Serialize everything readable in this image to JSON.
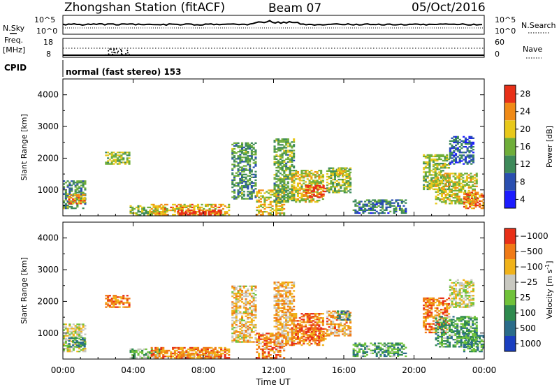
{
  "header": {
    "title": "Zhongshan Station (fitACF)",
    "beam": "Beam 07",
    "date": "05/Oct/2016"
  },
  "summary_panels": {
    "nsky_label": "N.Sky",
    "nsearch_label": "N.Search",
    "noise_tick_top": "10^5",
    "noise_tick_bottom": "10^0",
    "freq_label": "Freq.",
    "freq_unit": "[MHz]",
    "freq_tick_top": "18",
    "freq_tick_bottom": "8",
    "nave_label": "Nave",
    "nave_tick_top": "60",
    "nave_tick_bottom": "0",
    "cpid_label": "CPID",
    "cpid_value": "normal (fast stereo) 153"
  },
  "chart_data": [
    {
      "type": "heatmap",
      "name": "power",
      "ylabel": "Slant Range [km]",
      "xlabel": "",
      "xlim": [
        0,
        24
      ],
      "ylim": [
        180,
        4500
      ],
      "yticks": [
        1000,
        2000,
        3000,
        4000
      ],
      "xtick_labels": [
        "00:00",
        "04:00",
        "08:00",
        "12:00",
        "16:00",
        "20:00",
        "00:00"
      ],
      "colorbar": {
        "label": "Power [dB]",
        "ticks": [
          "4",
          "8",
          "12",
          "16",
          "20",
          "24",
          "28"
        ],
        "colors": [
          "#1c1cff",
          "#2a4fb0",
          "#3e8a5a",
          "#6fae3a",
          "#e8c81a",
          "#f08a16",
          "#e83018"
        ]
      },
      "regions": [
        {
          "t": [
            0.0,
            1.3
          ],
          "r": [
            400,
            1300
          ],
          "level": 0.4
        },
        {
          "t": [
            0.3,
            1.2
          ],
          "r": [
            550,
            850
          ],
          "level": 0.75
        },
        {
          "t": [
            2.4,
            3.8
          ],
          "r": [
            1800,
            2200
          ],
          "level": 0.55
        },
        {
          "t": [
            3.8,
            5.5
          ],
          "r": [
            200,
            500
          ],
          "level": 0.5
        },
        {
          "t": [
            5.0,
            9.5
          ],
          "r": [
            200,
            550
          ],
          "level": 0.7
        },
        {
          "t": [
            6.5,
            9.0
          ],
          "r": [
            200,
            350
          ],
          "level": 0.95
        },
        {
          "t": [
            9.6,
            11.0
          ],
          "r": [
            700,
            2500
          ],
          "level": 0.4
        },
        {
          "t": [
            11.0,
            12.6
          ],
          "r": [
            200,
            1000
          ],
          "level": 0.65
        },
        {
          "t": [
            12.0,
            13.2
          ],
          "r": [
            600,
            2600
          ],
          "level": 0.45
        },
        {
          "t": [
            13.0,
            14.8
          ],
          "r": [
            600,
            1600
          ],
          "level": 0.6
        },
        {
          "t": [
            13.8,
            15.0
          ],
          "r": [
            750,
            1150
          ],
          "level": 0.92
        },
        {
          "t": [
            15.0,
            16.4
          ],
          "r": [
            900,
            1700
          ],
          "level": 0.5
        },
        {
          "t": [
            15.6,
            16.3
          ],
          "r": [
            1400,
            1700
          ],
          "level": 0.6
        },
        {
          "t": [
            16.5,
            19.5
          ],
          "r": [
            250,
            700
          ],
          "level": 0.3
        },
        {
          "t": [
            20.5,
            22.0
          ],
          "r": [
            1000,
            2100
          ],
          "level": 0.55
        },
        {
          "t": [
            21.2,
            23.6
          ],
          "r": [
            550,
            1500
          ],
          "level": 0.6
        },
        {
          "t": [
            22.8,
            24.0
          ],
          "r": [
            400,
            900
          ],
          "level": 0.8
        },
        {
          "t": [
            22.0,
            23.4
          ],
          "r": [
            1800,
            2700
          ],
          "level": 0.25
        }
      ]
    },
    {
      "type": "heatmap",
      "name": "velocity",
      "ylabel": "Slant Range [km]",
      "xlabel": "Time UT",
      "xlim": [
        0,
        24
      ],
      "ylim": [
        180,
        4500
      ],
      "yticks": [
        1000,
        2000,
        3000,
        4000
      ],
      "xtick_labels": [
        "00:00",
        "04:00",
        "08:00",
        "12:00",
        "16:00",
        "20:00",
        "00:00"
      ],
      "colorbar": {
        "label": "Velocity [m s^-1]",
        "ticks": [
          "1000",
          "500",
          "100",
          "25",
          "−25",
          "−100",
          "−500",
          "−1000"
        ],
        "colors": [
          "#1a3fc0",
          "#2a6c8a",
          "#2e8a4e",
          "#70c23a",
          "#c8c8c0",
          "#f0b21a",
          "#f07a16",
          "#e83018"
        ]
      },
      "regions": [
        {
          "t": [
            0.0,
            1.3
          ],
          "r": [
            400,
            1300
          ],
          "level": 0.55
        },
        {
          "t": [
            0.3,
            1.2
          ],
          "r": [
            550,
            850
          ],
          "level": 0.3
        },
        {
          "t": [
            2.4,
            3.8
          ],
          "r": [
            1800,
            2200
          ],
          "level": 0.8
        },
        {
          "t": [
            3.8,
            5.5
          ],
          "r": [
            200,
            500
          ],
          "level": 0.45
        },
        {
          "t": [
            5.0,
            9.5
          ],
          "r": [
            200,
            550
          ],
          "level": 0.8
        },
        {
          "t": [
            6.5,
            9.0
          ],
          "r": [
            200,
            350
          ],
          "level": 0.72
        },
        {
          "t": [
            9.6,
            11.0
          ],
          "r": [
            700,
            2500
          ],
          "level": 0.65
        },
        {
          "t": [
            11.0,
            12.6
          ],
          "r": [
            200,
            1000
          ],
          "level": 0.78
        },
        {
          "t": [
            12.0,
            13.2
          ],
          "r": [
            600,
            2600
          ],
          "level": 0.7
        },
        {
          "t": [
            13.0,
            14.8
          ],
          "r": [
            600,
            1600
          ],
          "level": 0.8
        },
        {
          "t": [
            13.8,
            15.0
          ],
          "r": [
            750,
            1150
          ],
          "level": 0.85
        },
        {
          "t": [
            15.0,
            16.4
          ],
          "r": [
            900,
            1700
          ],
          "level": 0.72
        },
        {
          "t": [
            15.6,
            16.3
          ],
          "r": [
            1400,
            1700
          ],
          "level": 0.25
        },
        {
          "t": [
            16.5,
            19.5
          ],
          "r": [
            250,
            700
          ],
          "level": 0.35
        },
        {
          "t": [
            20.5,
            22.0
          ],
          "r": [
            1000,
            2100
          ],
          "level": 0.82
        },
        {
          "t": [
            21.2,
            23.6
          ],
          "r": [
            550,
            1500
          ],
          "level": 0.35
        },
        {
          "t": [
            22.8,
            24.0
          ],
          "r": [
            400,
            900
          ],
          "level": 0.3
        },
        {
          "t": [
            22.0,
            23.4
          ],
          "r": [
            1800,
            2700
          ],
          "level": 0.55
        }
      ]
    }
  ]
}
